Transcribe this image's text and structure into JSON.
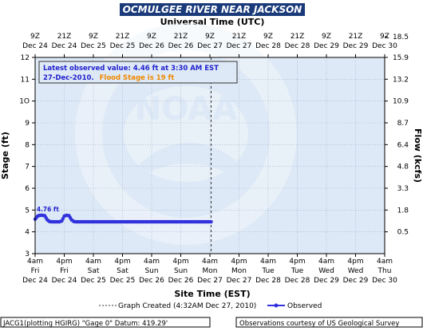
{
  "chart_data": {
    "type": "line",
    "title": "OCMULGEE RIVER NEAR JACKSON",
    "top_axis_title": "Universal Time (UTC)",
    "bottom_axis_title": "Site Time (EST)",
    "ylabel": "Stage (ft)",
    "y2label": "Flow (kcfs)",
    "ylim": [
      3,
      12
    ],
    "y_ticks": [
      3,
      4,
      5,
      6,
      7,
      8,
      9,
      10,
      11,
      12
    ],
    "y_tick_labels": [
      "3",
      "4",
      "5",
      "6",
      "7",
      "8",
      "9",
      "1O",
      "11",
      "12"
    ],
    "flow_ticks": [
      {
        "stage": 4.0,
        "label": "0.5"
      },
      {
        "stage": 5.0,
        "label": "1.8"
      },
      {
        "stage": 6.0,
        "label": "3.3"
      },
      {
        "stage": 7.0,
        "label": "4.8"
      },
      {
        "stage": 8.0,
        "label": "6.4"
      },
      {
        "stage": 9.0,
        "label": "8.7"
      },
      {
        "stage": 10.0,
        "label": "10.9"
      },
      {
        "stage": 11.0,
        "label": "13.2"
      },
      {
        "stage": 12.0,
        "label": "15.9"
      },
      {
        "stage": 12.95,
        "label": "18.5"
      }
    ],
    "x_unit": "hours after 4am Fri Dec 24 (EST)",
    "xlim": [
      0,
      144
    ],
    "x_ticks": [
      0,
      12,
      24,
      36,
      48,
      60,
      72,
      84,
      96,
      108,
      120,
      132,
      144
    ],
    "bottom_tick_labels": [
      {
        "time": "4am",
        "day": "Fri",
        "date": "Dec 24"
      },
      {
        "time": "4pm",
        "day": "Fri",
        "date": "Dec 24"
      },
      {
        "time": "4am",
        "day": "Sat",
        "date": "Dec 25"
      },
      {
        "time": "4pm",
        "day": "Sat",
        "date": "Dec 25"
      },
      {
        "time": "4am",
        "day": "Sun",
        "date": "Dec 26"
      },
      {
        "time": "4pm",
        "day": "Sun",
        "date": "Dec 26"
      },
      {
        "time": "4am",
        "day": "Mon",
        "date": "Dec 27"
      },
      {
        "time": "4pm",
        "day": "Mon",
        "date": "Dec 27"
      },
      {
        "time": "4am",
        "day": "Tue",
        "date": "Dec 28"
      },
      {
        "time": "4pm",
        "day": "Tue",
        "date": "Dec 28"
      },
      {
        "time": "4am",
        "day": "Wed",
        "date": "Dec 29"
      },
      {
        "time": "4pm",
        "day": "Wed",
        "date": "Dec 29"
      },
      {
        "time": "4am",
        "day": "Thu",
        "date": "Dec 30"
      }
    ],
    "top_tick_labels": [
      {
        "time": "9Z",
        "date": "Dec 24"
      },
      {
        "time": "21Z",
        "date": "Dec 24"
      },
      {
        "time": "9Z",
        "date": "Dec 25"
      },
      {
        "time": "21Z",
        "date": "Dec 25"
      },
      {
        "time": "9Z",
        "date": "Dec 26"
      },
      {
        "time": "21Z",
        "date": "Dec 26"
      },
      {
        "time": "9Z",
        "date": "Dec 27"
      },
      {
        "time": "21Z",
        "date": "Dec 27"
      },
      {
        "time": "9Z",
        "date": "Dec 28"
      },
      {
        "time": "21Z",
        "date": "Dec 28"
      },
      {
        "time": "9Z",
        "date": "Dec 29"
      },
      {
        "time": "21Z",
        "date": "Dec 29"
      },
      {
        "time": "9Z",
        "date": "Dec 30"
      }
    ],
    "graph_created_x": 72.5,
    "series": [
      {
        "name": "Observed",
        "color": "#3333dd",
        "x": [
          0,
          1,
          2,
          3,
          4,
          5,
          6,
          7,
          8,
          9,
          10,
          11,
          12,
          13,
          14,
          15,
          16,
          17,
          18,
          20,
          24,
          30,
          36,
          42,
          48,
          54,
          60,
          66,
          72.5
        ],
        "y": [
          4.58,
          4.72,
          4.76,
          4.76,
          4.74,
          4.55,
          4.47,
          4.46,
          4.46,
          4.46,
          4.46,
          4.5,
          4.72,
          4.76,
          4.74,
          4.55,
          4.47,
          4.46,
          4.46,
          4.46,
          4.46,
          4.46,
          4.46,
          4.46,
          4.46,
          4.46,
          4.46,
          4.46,
          4.46
        ]
      }
    ],
    "annotation_label": "4.76 ft",
    "info_box": {
      "line1": "Latest observed value: 4.46 ft at 3:30 AM EST",
      "line2_date": "27-Dec-2010.",
      "line2_flood": "Flood Stage is 19 ft"
    },
    "legend": {
      "graph_created": "Graph Created (4:32AM Dec 27, 2010)",
      "observed": "Observed"
    },
    "footer_left": "JACG1(plotting HGIRG) \"Gage 0\" Datum: 419.29'",
    "footer_right": "Observations courtesy of US Geological Survey",
    "watermark": "NOAA",
    "colors": {
      "title_bar": "#1a3a7a",
      "plot_bg": "#dde9f6",
      "grid": "#99aac4",
      "series": "#3333dd",
      "flood_text": "#ee8800"
    }
  }
}
